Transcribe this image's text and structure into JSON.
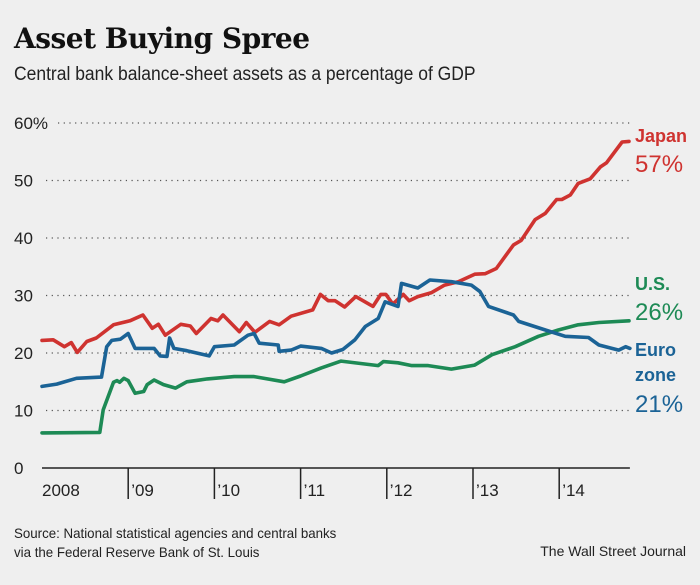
{
  "chart_data": {
    "type": "line",
    "title": "Asset Buying Spree",
    "subtitle": "Central bank balance-sheet assets as a percentage of GDP",
    "ylim": [
      0,
      60
    ],
    "yticks": [
      0,
      10,
      20,
      30,
      40,
      50,
      60
    ],
    "ytick_labels": [
      "0",
      "10",
      "20",
      "30",
      "40",
      "50",
      "60%"
    ],
    "xlim": [
      2008,
      2014.82
    ],
    "xticks": [
      2008,
      2009,
      2010,
      2011,
      2012,
      2013,
      2014
    ],
    "xtick_labels": [
      "2008",
      "’09",
      "’10",
      "’11",
      "’12",
      "’13",
      "’14"
    ],
    "grid": "horizontal dotted",
    "legend": "direct labels at right end",
    "series": [
      {
        "name": "Japan",
        "end_label": "57%",
        "color": "#cf3330",
        "points": [
          [
            2008.0,
            22.2
          ],
          [
            2008.13,
            22.3
          ],
          [
            2008.26,
            21.1
          ],
          [
            2008.34,
            21.8
          ],
          [
            2008.41,
            20.1
          ],
          [
            2008.52,
            22
          ],
          [
            2008.63,
            22.6
          ],
          [
            2008.83,
            24.9
          ],
          [
            2009.02,
            25.6
          ],
          [
            2009.17,
            26.6
          ],
          [
            2009.28,
            24.3
          ],
          [
            2009.35,
            25
          ],
          [
            2009.43,
            23.1
          ],
          [
            2009.61,
            25
          ],
          [
            2009.72,
            24.7
          ],
          [
            2009.79,
            23.4
          ],
          [
            2009.96,
            26
          ],
          [
            2010.04,
            25.6
          ],
          [
            2010.1,
            26.6
          ],
          [
            2010.29,
            23.7
          ],
          [
            2010.37,
            25.3
          ],
          [
            2010.47,
            23.6
          ],
          [
            2010.64,
            25.5
          ],
          [
            2010.75,
            24.9
          ],
          [
            2010.89,
            26.4
          ],
          [
            2011.14,
            27.5
          ],
          [
            2011.23,
            30.2
          ],
          [
            2011.32,
            29.1
          ],
          [
            2011.4,
            29.1
          ],
          [
            2011.51,
            28
          ],
          [
            2011.64,
            29.8
          ],
          [
            2011.84,
            28.1
          ],
          [
            2011.93,
            30.2
          ],
          [
            2011.99,
            30.2
          ],
          [
            2012.07,
            28.5
          ],
          [
            2012.19,
            30.2
          ],
          [
            2012.26,
            29.1
          ],
          [
            2012.36,
            29.8
          ],
          [
            2012.52,
            30.5
          ],
          [
            2012.67,
            31.8
          ],
          [
            2012.83,
            32.4
          ],
          [
            2013.02,
            33.7
          ],
          [
            2013.14,
            33.8
          ],
          [
            2013.27,
            34.7
          ],
          [
            2013.47,
            38.8
          ],
          [
            2013.56,
            39.6
          ],
          [
            2013.72,
            43.2
          ],
          [
            2013.84,
            44.3
          ],
          [
            2013.97,
            46.7
          ],
          [
            2014.03,
            46.7
          ],
          [
            2014.13,
            47.5
          ],
          [
            2014.22,
            49.5
          ],
          [
            2014.36,
            50.3
          ],
          [
            2014.48,
            52.4
          ],
          [
            2014.55,
            53.1
          ],
          [
            2014.73,
            56.7
          ],
          [
            2014.81,
            56.8
          ]
        ]
      },
      {
        "name": "U.S.",
        "end_label": "26%",
        "color": "#1d8a55",
        "points": [
          [
            2008.0,
            6.1
          ],
          [
            2008.67,
            6.2
          ],
          [
            2008.71,
            10.1
          ],
          [
            2008.83,
            14.9
          ],
          [
            2008.87,
            15.2
          ],
          [
            2008.9,
            14.9
          ],
          [
            2008.95,
            15.6
          ],
          [
            2009.0,
            15.2
          ],
          [
            2009.08,
            13
          ],
          [
            2009.18,
            13.3
          ],
          [
            2009.22,
            14.5
          ],
          [
            2009.3,
            15.3
          ],
          [
            2009.41,
            14.5
          ],
          [
            2009.55,
            13.9
          ],
          [
            2009.68,
            15
          ],
          [
            2009.92,
            15.5
          ],
          [
            2010.23,
            15.9
          ],
          [
            2010.46,
            15.9
          ],
          [
            2010.81,
            15
          ],
          [
            2011.0,
            16
          ],
          [
            2011.24,
            17.4
          ],
          [
            2011.47,
            18.6
          ],
          [
            2011.9,
            17.8
          ],
          [
            2011.96,
            18.5
          ],
          [
            2012.13,
            18.3
          ],
          [
            2012.29,
            17.8
          ],
          [
            2012.48,
            17.8
          ],
          [
            2012.75,
            17.2
          ],
          [
            2013.02,
            17.9
          ],
          [
            2013.22,
            19.7
          ],
          [
            2013.49,
            21.1
          ],
          [
            2013.76,
            22.9
          ],
          [
            2013.99,
            24
          ],
          [
            2014.22,
            24.9
          ],
          [
            2014.46,
            25.3
          ],
          [
            2014.81,
            25.6
          ]
        ]
      },
      {
        "name": "Euro zone",
        "name_lines": [
          "Euro",
          "zone"
        ],
        "end_label": "21%",
        "color": "#1b6396",
        "points": [
          [
            2008.0,
            14.2
          ],
          [
            2008.17,
            14.6
          ],
          [
            2008.4,
            15.6
          ],
          [
            2008.69,
            15.8
          ],
          [
            2008.75,
            21.1
          ],
          [
            2008.81,
            22.2
          ],
          [
            2008.91,
            22.4
          ],
          [
            2009.0,
            23.4
          ],
          [
            2009.08,
            20.8
          ],
          [
            2009.3,
            20.8
          ],
          [
            2009.37,
            19.5
          ],
          [
            2009.45,
            19.4
          ],
          [
            2009.48,
            22.6
          ],
          [
            2009.53,
            20.8
          ],
          [
            2009.68,
            20.4
          ],
          [
            2009.94,
            19.5
          ],
          [
            2010.0,
            21.1
          ],
          [
            2010.23,
            21.4
          ],
          [
            2010.39,
            23.1
          ],
          [
            2010.46,
            23.4
          ],
          [
            2010.52,
            21.7
          ],
          [
            2010.74,
            21.4
          ],
          [
            2010.75,
            20.3
          ],
          [
            2010.89,
            20.5
          ],
          [
            2011.0,
            21.2
          ],
          [
            2011.24,
            20.8
          ],
          [
            2011.36,
            20
          ],
          [
            2011.49,
            20.6
          ],
          [
            2011.63,
            22.3
          ],
          [
            2011.75,
            24.6
          ],
          [
            2011.9,
            26
          ],
          [
            2011.98,
            28.9
          ],
          [
            2012.13,
            28.1
          ],
          [
            2012.17,
            32.1
          ],
          [
            2012.36,
            31.3
          ],
          [
            2012.5,
            32.7
          ],
          [
            2012.75,
            32.4
          ],
          [
            2012.98,
            31.8
          ],
          [
            2013.08,
            30.7
          ],
          [
            2013.18,
            28.1
          ],
          [
            2013.47,
            26.6
          ],
          [
            2013.53,
            25.5
          ],
          [
            2013.84,
            24
          ],
          [
            2014.07,
            22.9
          ],
          [
            2014.34,
            22.7
          ],
          [
            2014.46,
            21.4
          ],
          [
            2014.69,
            20.5
          ],
          [
            2014.77,
            21.1
          ],
          [
            2014.82,
            20.8
          ]
        ]
      }
    ],
    "source_lines": [
      "Source: National statistical agencies and central banks",
      "via the Federal Reserve Bank of St. Louis"
    ],
    "credit": "The Wall Street Journal"
  }
}
